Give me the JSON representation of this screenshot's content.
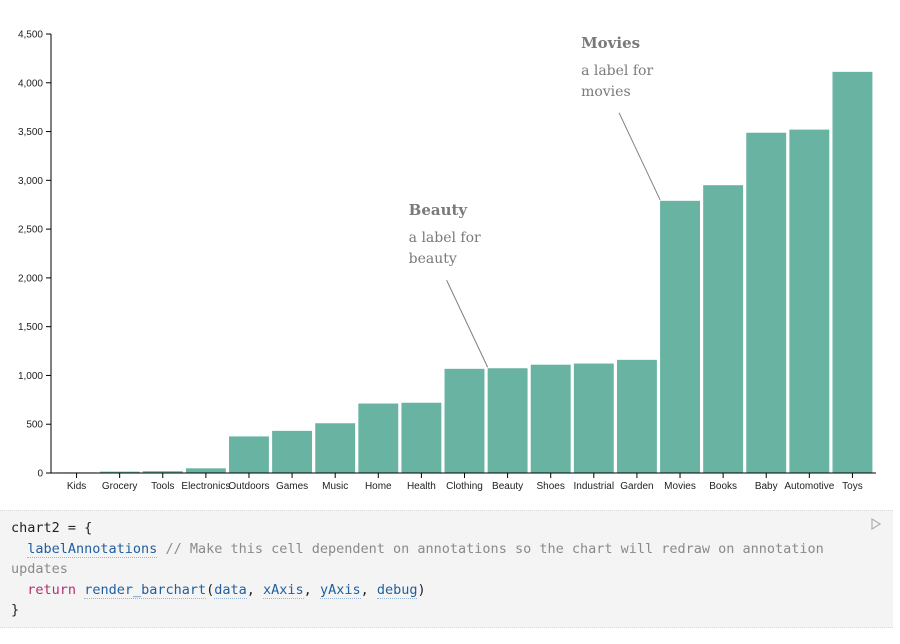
{
  "chart_data": {
    "type": "bar",
    "title": "",
    "xlabel": "",
    "ylabel": "",
    "categories": [
      "Kids",
      "Grocery",
      "Tools",
      "Electronics",
      "Outdoors",
      "Games",
      "Music",
      "Home",
      "Health",
      "Clothing",
      "Beauty",
      "Shoes",
      "Industrial",
      "Garden",
      "Movies",
      "Books",
      "Baby",
      "Automotive",
      "Toys"
    ],
    "values": [
      6,
      14,
      18,
      48,
      375,
      432,
      510,
      712,
      720,
      1068,
      1074,
      1110,
      1122,
      1160,
      2790,
      2950,
      3488,
      3520,
      4112
    ],
    "ylim": [
      0,
      4500
    ],
    "yticks": [
      0,
      500,
      1000,
      1500,
      2000,
      2500,
      3000,
      3500,
      4000,
      4500
    ],
    "ytick_labels": [
      "0",
      "500",
      "1,000",
      "1,500",
      "2,000",
      "2,500",
      "3,000",
      "3,500",
      "4,000",
      "4,500"
    ],
    "bar_color": "#69b3a2",
    "grid": false,
    "annotations": [
      {
        "category": "Beauty",
        "title": "Beauty",
        "lines": [
          "a label for",
          "beauty"
        ]
      },
      {
        "category": "Movies",
        "title": "Movies",
        "lines": [
          "a label for",
          "movies"
        ]
      }
    ]
  },
  "code_cell": {
    "line1": "chart2 = {",
    "line2_ident": "labelAnnotations",
    "line2_comment": "// Make this cell dependent on annotations so the chart will redraw on annotation updates",
    "line3_kw": "return",
    "line3_fn": "render_barchart",
    "line3_args": [
      "data",
      "xAxis",
      "yAxis",
      "debug"
    ],
    "line4": "}",
    "run_icon": "play-icon"
  }
}
